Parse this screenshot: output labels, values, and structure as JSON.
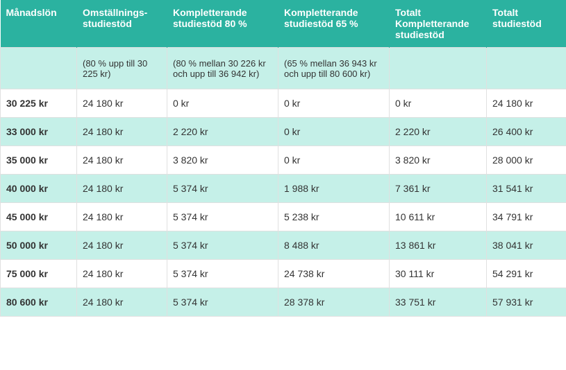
{
  "table": {
    "type": "table",
    "header_background": "#2bb2a0",
    "header_text_color": "#ffffff",
    "row_alt_background": "#c5f0e8",
    "row_background": "#ffffff",
    "border_color": "#e0e0e0",
    "font_family": "Arial",
    "header_fontsize": 14,
    "cell_fontsize": 14,
    "info_fontsize": 13,
    "columns": [
      {
        "label": "Månadslön",
        "width": 110
      },
      {
        "label": "Omställnings-studiestöd",
        "width": 130
      },
      {
        "label": "Kompletterande studiestöd 80 %",
        "width": 160
      },
      {
        "label": "Kompletterande studiestöd 65 %",
        "width": 160
      },
      {
        "label": "Totalt Kompletterande studiestöd",
        "width": 140
      },
      {
        "label": "Totalt studiestöd",
        "width": 115
      }
    ],
    "info_row": [
      "",
      "(80 % upp till 30 225 kr)",
      "(80 % mellan 30 226 kr och upp till 36 942 kr)",
      "(65 % mellan 36 943 kr och upp till 80 600 kr)",
      "",
      ""
    ],
    "rows": [
      [
        "30 225 kr",
        "24 180 kr",
        "0 kr",
        "0 kr",
        "0 kr",
        "24 180 kr"
      ],
      [
        "33 000 kr",
        "24 180 kr",
        "2 220 kr",
        "0 kr",
        "2 220 kr",
        "26 400 kr"
      ],
      [
        "35 000 kr",
        "24 180 kr",
        "3 820 kr",
        "0 kr",
        "3 820 kr",
        "28 000 kr"
      ],
      [
        "40 000 kr",
        "24 180 kr",
        "5 374 kr",
        "1 988 kr",
        "7 361 kr",
        "31 541 kr"
      ],
      [
        "45 000 kr",
        "24 180 kr",
        "5 374 kr",
        "5 238 kr",
        "10 611 kr",
        "34 791 kr"
      ],
      [
        "50 000 kr",
        "24 180 kr",
        "5 374 kr",
        "8 488 kr",
        "13 861 kr",
        "38 041 kr"
      ],
      [
        "75 000 kr",
        "24 180 kr",
        "5 374 kr",
        "24 738 kr",
        "30 111 kr",
        "54 291 kr"
      ],
      [
        "80 600 kr",
        "24 180 kr",
        "5 374 kr",
        "28 378 kr",
        "33 751 kr",
        "57 931 kr"
      ]
    ]
  }
}
